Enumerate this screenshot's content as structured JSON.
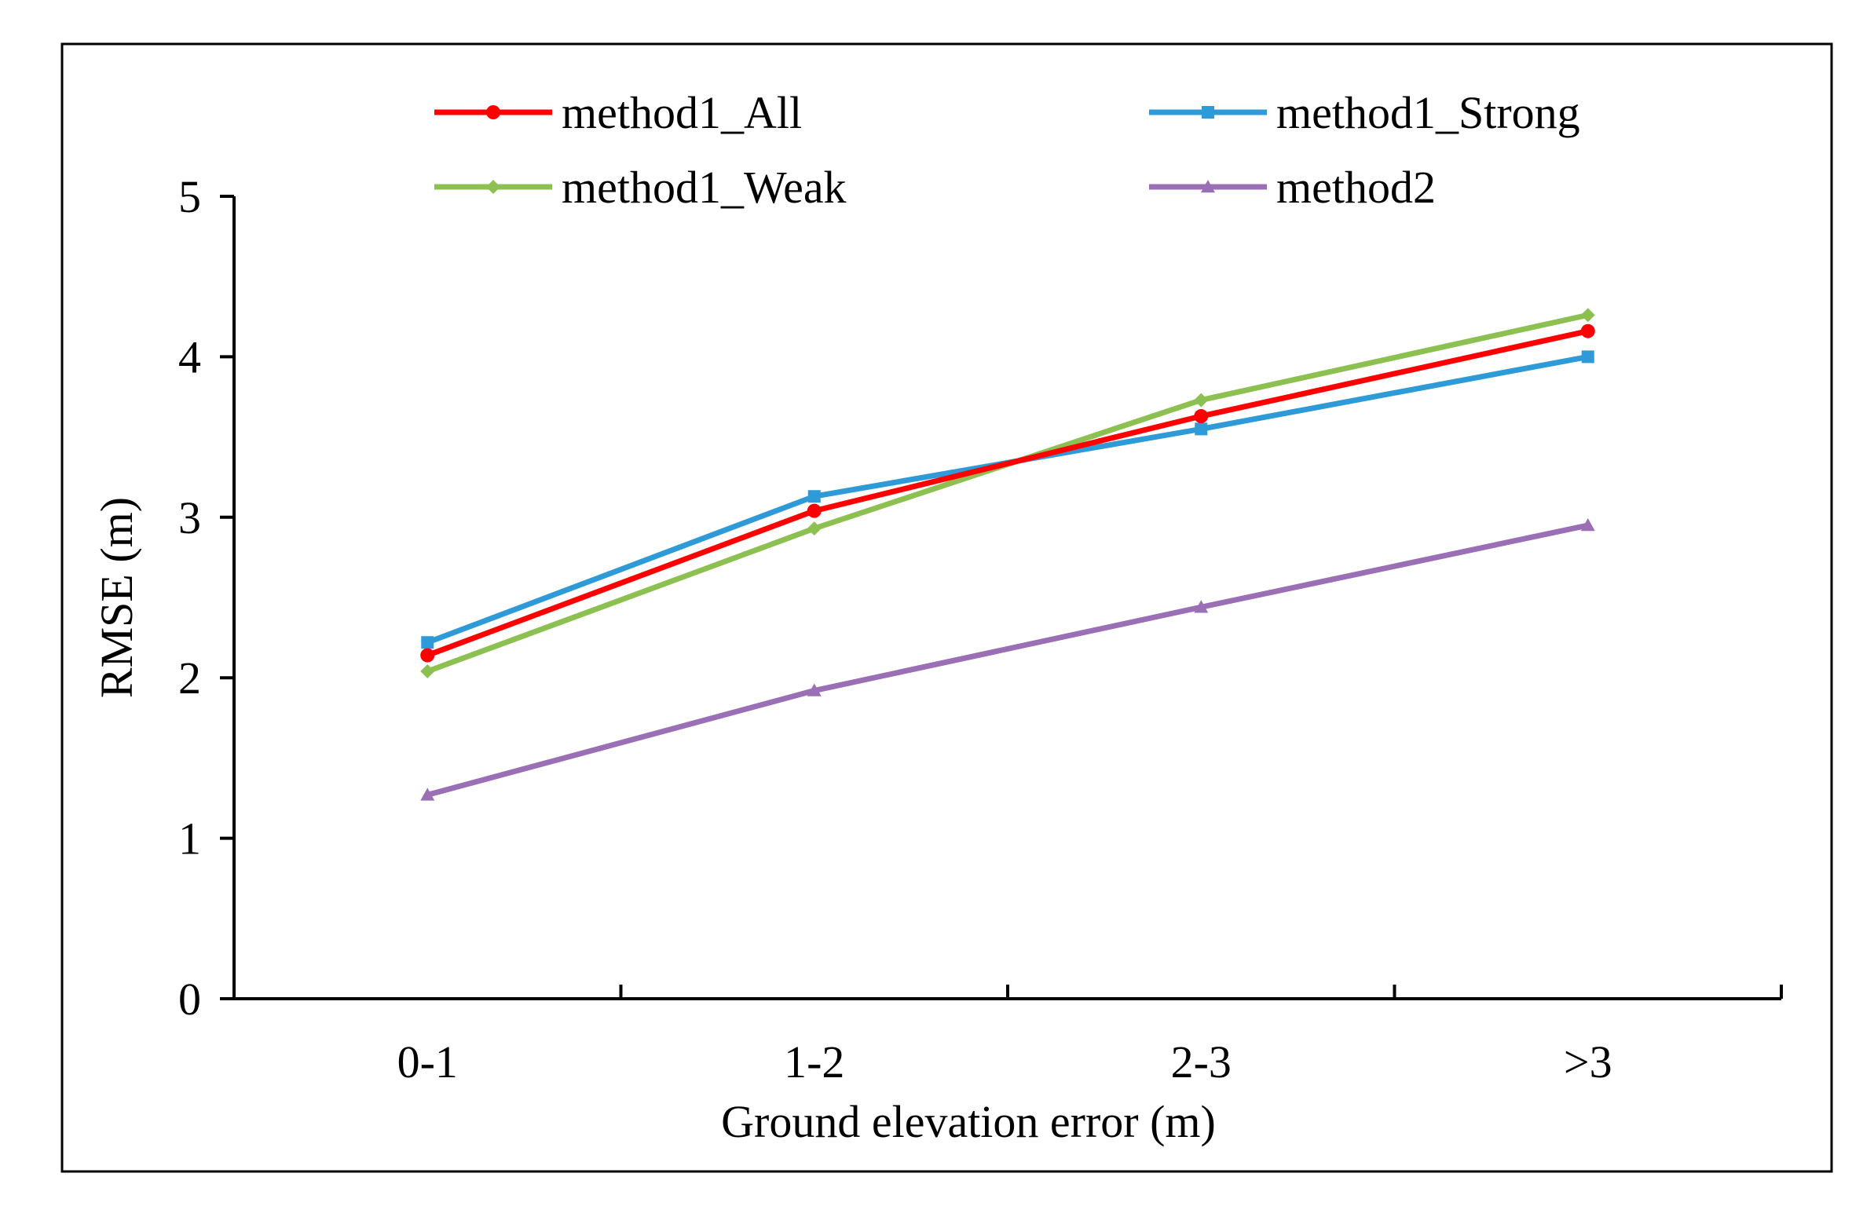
{
  "chart_data": {
    "type": "line",
    "title": "",
    "xlabel": "Ground elevation error (m)",
    "ylabel": "RMSE (m)",
    "categories": [
      "0-1",
      "1-2",
      "2-3",
      ">3"
    ],
    "ylim": [
      0,
      5
    ],
    "yticks": [
      "0",
      "1",
      "2",
      "3",
      "4",
      "5"
    ],
    "grid": false,
    "legend": "top",
    "series": [
      {
        "name": "method1_All",
        "color": "#ff0000",
        "marker": "circle",
        "values": [
          2.14,
          3.04,
          3.63,
          4.16
        ]
      },
      {
        "name": "method1_Strong",
        "color": "#2e9ad8",
        "marker": "square",
        "values": [
          2.22,
          3.13,
          3.55,
          4.0
        ]
      },
      {
        "name": "method1_Weak",
        "color": "#8cc152",
        "marker": "diamond",
        "values": [
          2.04,
          2.93,
          3.73,
          4.26
        ]
      },
      {
        "name": "method2",
        "color": "#9b6fb5",
        "marker": "triangle",
        "values": [
          1.27,
          1.92,
          2.44,
          2.95
        ]
      }
    ]
  }
}
